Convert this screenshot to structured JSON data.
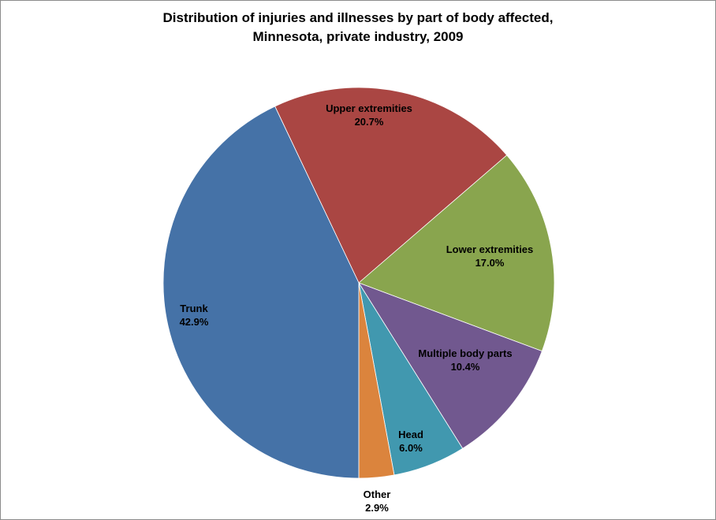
{
  "chart_data": {
    "type": "pie",
    "title_lines": [
      "Distribution of injuries and illnesses by part of body affected,",
      "Minnesota, private industry, 2009"
    ],
    "slices": [
      {
        "name": "Upper extremities",
        "value": 20.7,
        "label": "20.7%",
        "color": "#AA4643"
      },
      {
        "name": "Lower extremities",
        "value": 17.0,
        "label": "17.0%",
        "color": "#89A54E"
      },
      {
        "name": "Multiple body parts",
        "value": 10.4,
        "label": "10.4%",
        "color": "#71588F"
      },
      {
        "name": "Head",
        "value": 6.0,
        "label": "6.0%",
        "color": "#4198AF"
      },
      {
        "name": "Other",
        "value": 2.9,
        "label": "2.9%",
        "color": "#DB843D"
      },
      {
        "name": "Trunk",
        "value": 42.9,
        "label": "42.9%",
        "color": "#4572A7"
      }
    ],
    "legend": "none"
  }
}
